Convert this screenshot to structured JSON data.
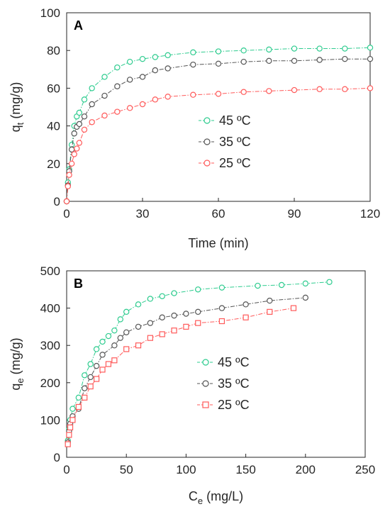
{
  "chart_data": [
    {
      "type": "line",
      "panel_label": "A",
      "xlabel": "Time (min)",
      "ylabel_main": "q",
      "ylabel_sub": "t",
      "ylabel_unit": " (mg/g)",
      "xlim": [
        0,
        120
      ],
      "ylim": [
        0,
        100
      ],
      "xticks": [
        0,
        30,
        60,
        90,
        120
      ],
      "yticks": [
        0,
        20,
        40,
        60,
        80,
        100
      ],
      "grid": false,
      "legend_position": "center-right",
      "series": [
        {
          "name": "45 ºC",
          "color": "#2ecc8f",
          "marker": "circle",
          "x": [
            0,
            0.5,
            1,
            2,
            3,
            4,
            5,
            7,
            10,
            15,
            20,
            25,
            30,
            35,
            40,
            50,
            60,
            70,
            80,
            90,
            100,
            110,
            120
          ],
          "y": [
            0,
            10,
            17,
            30,
            40,
            45,
            47,
            54,
            60,
            66,
            71,
            74,
            75.5,
            76.5,
            77.5,
            79,
            79.5,
            80,
            80.5,
            81,
            81,
            81,
            81.5
          ]
        },
        {
          "name": "35 ºC",
          "color": "#555555",
          "marker": "circle",
          "x": [
            0,
            0.5,
            1,
            2,
            3,
            4,
            5,
            7,
            10,
            15,
            20,
            25,
            30,
            35,
            40,
            50,
            60,
            70,
            80,
            90,
            100,
            110,
            120
          ],
          "y": [
            0,
            8.5,
            16,
            27.5,
            36,
            39.5,
            41,
            45,
            51.5,
            56,
            61,
            64.5,
            66,
            69.5,
            70.5,
            72.5,
            73,
            74,
            74.5,
            74.5,
            75,
            75.5,
            75.5
          ]
        },
        {
          "name": "25 ºC",
          "color": "#ff5a5a",
          "marker": "circle",
          "x": [
            0,
            0.5,
            1,
            2,
            3,
            4,
            5,
            7,
            10,
            15,
            20,
            25,
            30,
            35,
            40,
            50,
            60,
            70,
            80,
            90,
            100,
            110,
            120
          ],
          "y": [
            0,
            8,
            14,
            20,
            25,
            28,
            31,
            38,
            42,
            45.5,
            47.5,
            49.5,
            51.5,
            54,
            55.5,
            56.5,
            57,
            58,
            58.5,
            59,
            59.5,
            59.5,
            60
          ]
        }
      ]
    },
    {
      "type": "line",
      "panel_label": "B",
      "xlabel_main": "C",
      "xlabel_sub": "e",
      "xlabel_unit": " (mg/L)",
      "ylabel_main": "q",
      "ylabel_sub": "e",
      "ylabel_unit": " (mg/g)",
      "xlim": [
        0,
        250
      ],
      "ylim": [
        0,
        500
      ],
      "xticks": [
        0,
        50,
        100,
        150,
        200,
        250
      ],
      "yticks": [
        0,
        100,
        200,
        300,
        400,
        500
      ],
      "grid": false,
      "legend_position": "center-right",
      "series": [
        {
          "name": "45 ºC",
          "color": "#2ecc8f",
          "marker": "circle",
          "x": [
            1,
            2,
            3,
            5,
            10,
            15,
            20,
            25,
            30,
            35,
            40,
            45,
            50,
            60,
            70,
            80,
            90,
            110,
            130,
            160,
            180,
            200,
            220
          ],
          "y": [
            45,
            75,
            100,
            130,
            160,
            220,
            250,
            290,
            310,
            325,
            340,
            370,
            390,
            410,
            425,
            432,
            440,
            450,
            455,
            460,
            462,
            466,
            470
          ]
        },
        {
          "name": "35 ºC",
          "color": "#555555",
          "marker": "circle",
          "x": [
            1,
            2,
            3,
            5,
            10,
            15,
            20,
            25,
            30,
            40,
            45,
            50,
            60,
            70,
            80,
            90,
            100,
            110,
            130,
            150,
            170,
            200
          ],
          "y": [
            40,
            70,
            90,
            110,
            130,
            185,
            215,
            245,
            275,
            300,
            320,
            335,
            350,
            360,
            375,
            380,
            385,
            390,
            400,
            410,
            420,
            428
          ]
        },
        {
          "name": "25 ºC",
          "color": "#ff5a5a",
          "marker": "square",
          "x": [
            1,
            2,
            3,
            5,
            10,
            15,
            20,
            25,
            30,
            35,
            40,
            50,
            60,
            70,
            80,
            90,
            100,
            110,
            130,
            150,
            170,
            190
          ],
          "y": [
            35,
            60,
            80,
            100,
            135,
            160,
            190,
            210,
            235,
            250,
            260,
            290,
            300,
            320,
            330,
            340,
            350,
            360,
            365,
            375,
            390,
            400
          ]
        }
      ]
    }
  ]
}
